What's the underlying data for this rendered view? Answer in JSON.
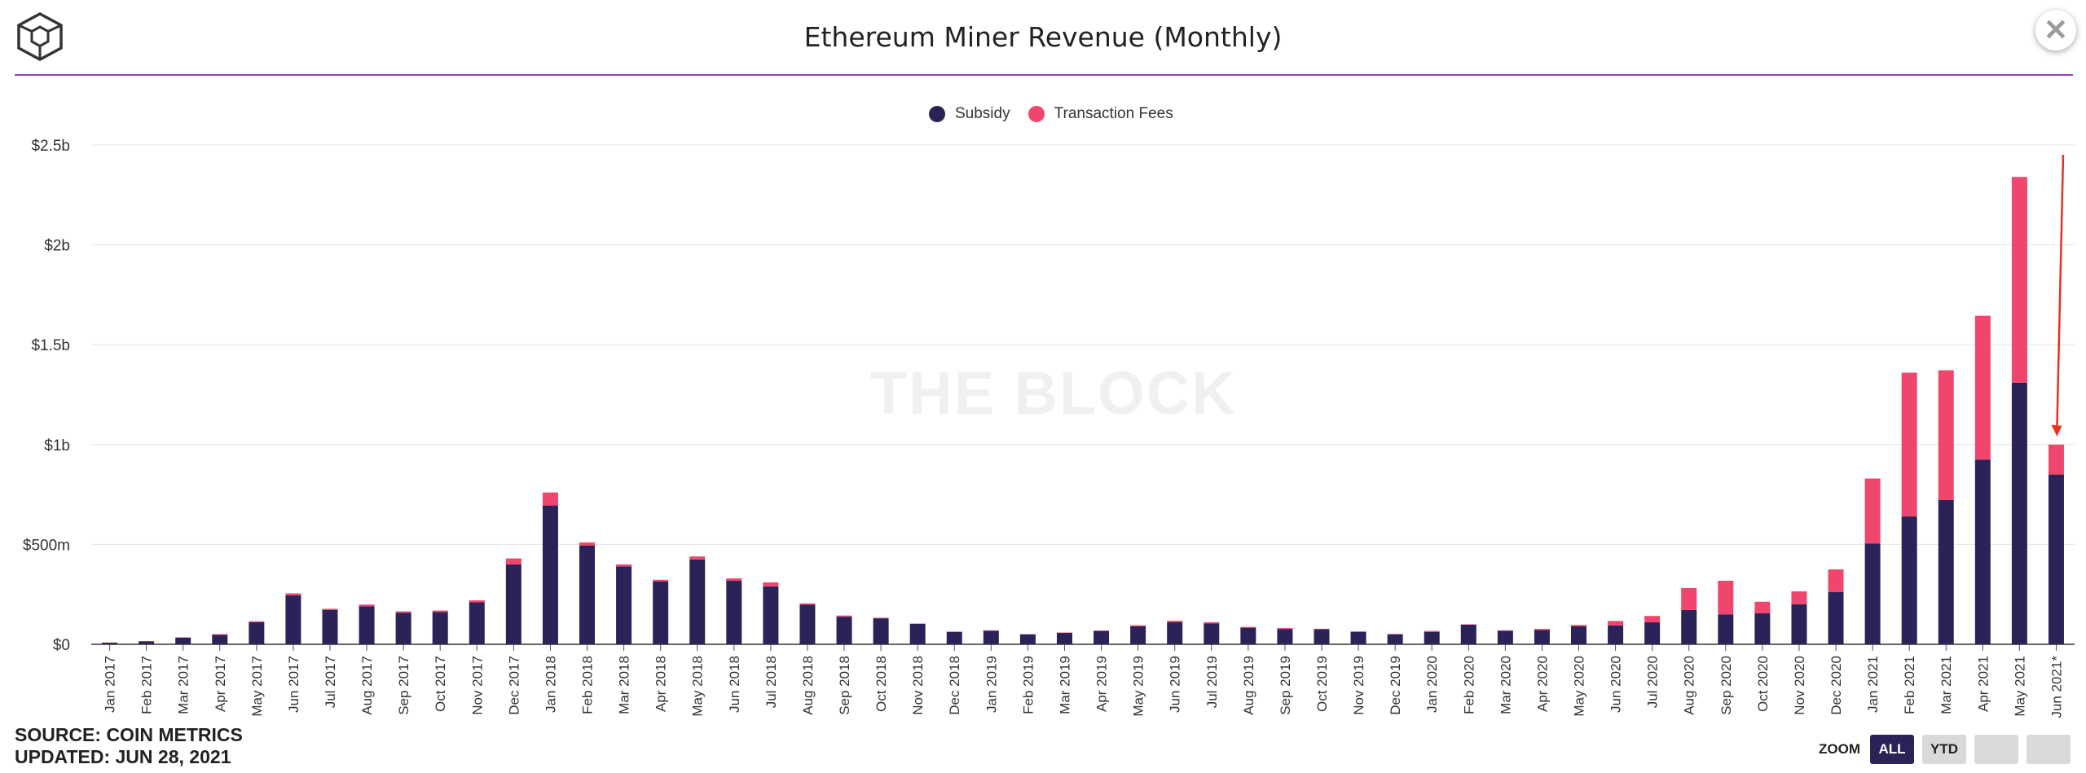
{
  "header": {
    "title": "Ethereum Miner Revenue (Monthly)",
    "close_glyph": "✕",
    "logo_icon": "the-block-cube-logo"
  },
  "watermark": "THE BLOCK",
  "footer": {
    "source": "SOURCE: COIN METRICS",
    "updated": "UPDATED: JUN 28, 2021"
  },
  "zoom": {
    "label": "ZOOM",
    "buttons": [
      "ALL",
      "YTD",
      "",
      ""
    ],
    "active": "ALL"
  },
  "colors": {
    "subsidy": "#2a2358",
    "fees": "#f0466e",
    "rule": "#9b3fb5",
    "arrow": "#e8321e"
  },
  "chart_data": {
    "type": "bar",
    "stacked": true,
    "title": "Ethereum Miner Revenue (Monthly)",
    "legend_position": "top-center",
    "grid": true,
    "ylim": [
      0,
      2500000000
    ],
    "y_ticks": [
      {
        "value": 0,
        "label": "$0"
      },
      {
        "value": 500000000,
        "label": "$500m"
      },
      {
        "value": 1000000000,
        "label": "$1b"
      },
      {
        "value": 1500000000,
        "label": "$1.5b"
      },
      {
        "value": 2000000000,
        "label": "$2b"
      },
      {
        "value": 2500000000,
        "label": "$2.5b"
      }
    ],
    "categories": [
      "Jan 2017",
      "Feb 2017",
      "Mar 2017",
      "Apr 2017",
      "May 2017",
      "Jun 2017",
      "Jul 2017",
      "Aug 2017",
      "Sep 2017",
      "Oct 2017",
      "Nov 2017",
      "Dec 2017",
      "Jan 2018",
      "Feb 2018",
      "Mar 2018",
      "Apr 2018",
      "May 2018",
      "Jun 2018",
      "Jul 2018",
      "Aug 2018",
      "Sep 2018",
      "Oct 2018",
      "Nov 2018",
      "Dec 2018",
      "Jan 2019",
      "Feb 2019",
      "Mar 2019",
      "Apr 2019",
      "May 2019",
      "Jun 2019",
      "Jul 2019",
      "Aug 2019",
      "Sep 2019",
      "Oct 2019",
      "Nov 2019",
      "Dec 2019",
      "Jan 2020",
      "Feb 2020",
      "Mar 2020",
      "Apr 2020",
      "May 2020",
      "Jun 2020",
      "Jul 2020",
      "Aug 2020",
      "Sep 2020",
      "Oct 2020",
      "Nov 2020",
      "Dec 2020",
      "Jan 2021",
      "Feb 2021",
      "Mar 2021",
      "Apr 2021",
      "May 2021",
      "Jun 2021*"
    ],
    "series": [
      {
        "name": "Subsidy",
        "values": [
          8000000,
          15000000,
          33000000,
          48000000,
          110000000,
          245000000,
          172000000,
          190000000,
          158000000,
          162000000,
          210000000,
          400000000,
          695000000,
          495000000,
          390000000,
          315000000,
          425000000,
          318000000,
          290000000,
          198000000,
          138000000,
          130000000,
          102000000,
          62000000,
          68000000,
          50000000,
          57000000,
          67000000,
          90000000,
          110000000,
          105000000,
          83000000,
          77000000,
          75000000,
          62000000,
          50000000,
          62000000,
          98000000,
          68000000,
          72000000,
          90000000,
          95000000,
          110000000,
          172000000,
          150000000,
          155000000,
          200000000,
          262000000,
          505000000,
          640000000,
          722000000,
          925000000,
          1310000000,
          850000000
        ]
      },
      {
        "name": "Transaction Fees",
        "values": [
          1000000,
          1000000,
          2000000,
          3000000,
          5000000,
          10000000,
          6000000,
          9000000,
          7000000,
          7000000,
          10000000,
          30000000,
          65000000,
          15000000,
          10000000,
          8000000,
          15000000,
          12000000,
          20000000,
          7000000,
          6000000,
          3000000,
          2000000,
          2000000,
          2000000,
          1000000,
          2000000,
          2000000,
          5000000,
          8000000,
          6000000,
          4000000,
          4000000,
          3000000,
          3000000,
          2000000,
          5000000,
          2000000,
          2000000,
          5000000,
          7000000,
          22000000,
          32000000,
          110000000,
          168000000,
          58000000,
          65000000,
          113000000,
          325000000,
          720000000,
          650000000,
          720000000,
          1030000000,
          150000000
        ]
      }
    ],
    "annotation": "arrow-pointing-to-jun-2021"
  }
}
